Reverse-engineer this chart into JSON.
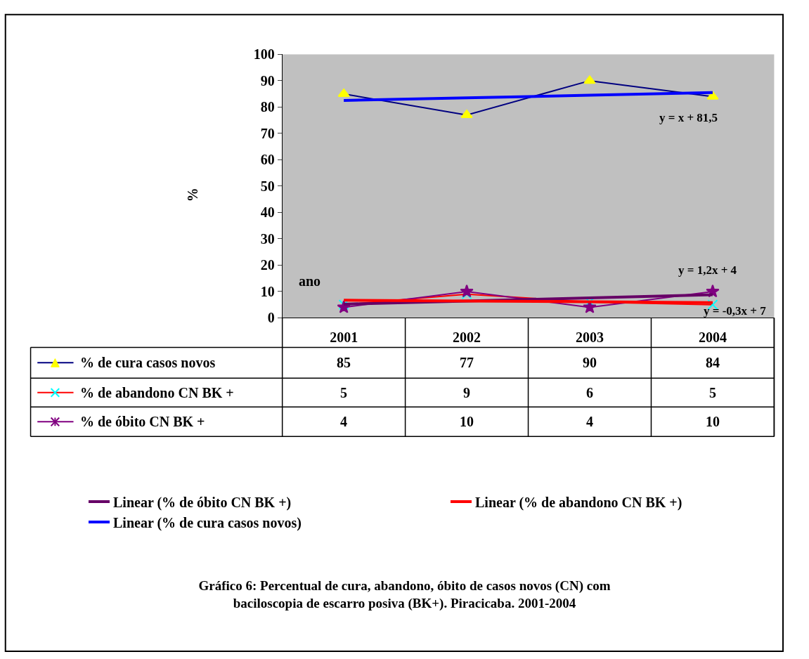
{
  "chart_data": {
    "type": "line",
    "title": "Gráfico 6: Percentual de cura, abandono, óbito de casos novos (CN) com baciloscopia de escarro posiva (BK+). Piracicaba. 2001-2004",
    "xlabel": "ano",
    "ylabel": "%",
    "categories": [
      "2001",
      "2002",
      "2003",
      "2004"
    ],
    "series": [
      {
        "name": "% de cura casos novos",
        "color": "#000080",
        "colors": [
          "#ffff00",
          "#ffff00",
          "#ffff00",
          "#ffff00"
        ],
        "marker": "triangle",
        "values": [
          85,
          77,
          90,
          84
        ],
        "value_labels": [
          "85",
          "77",
          "90",
          "84"
        ]
      },
      {
        "name": "% de abandono CN BK +",
        "color": "#ff0000",
        "colors": [
          "#00ffff",
          "#00ffff",
          "#00ffff",
          "#00ffff"
        ],
        "marker": "cross",
        "values": [
          5,
          9,
          6,
          5
        ],
        "value_labels": [
          "5",
          "9",
          "6",
          "5"
        ]
      },
      {
        "name": "% de óbito CN BK +",
        "color": "#800080",
        "colors": [
          "#800080",
          "#800080",
          "#800080",
          "#800080"
        ],
        "marker": "star",
        "values": [
          4,
          10,
          4,
          10
        ],
        "value_labels": [
          "4",
          "10",
          "4",
          "10"
        ]
      },
      {
        "name": "Linear (% de óbito CN BK +)",
        "color": "#660066",
        "marker": "none",
        "values": [
          5.2,
          6.4,
          7.6,
          8.8
        ]
      },
      {
        "name": "Linear (% de abandono CN BK +)",
        "color": "#ff0000",
        "marker": "none",
        "values": [
          6.7,
          6.4,
          6.1,
          5.8
        ]
      },
      {
        "name": "Linear (% de cura casos novos)",
        "color": "#0000ff",
        "marker": "none",
        "values": [
          82.5,
          83.5,
          84.5,
          85.5
        ]
      }
    ],
    "annotations": [
      "y = x + 81,5",
      "y = 1,2x + 4",
      "y = -0,3x + 7"
    ],
    "ylim": [
      0,
      100
    ],
    "yticks": [
      0,
      10,
      20,
      30,
      40,
      50,
      60,
      70,
      80,
      90,
      100
    ],
    "grid": false,
    "legend": "bottom"
  }
}
